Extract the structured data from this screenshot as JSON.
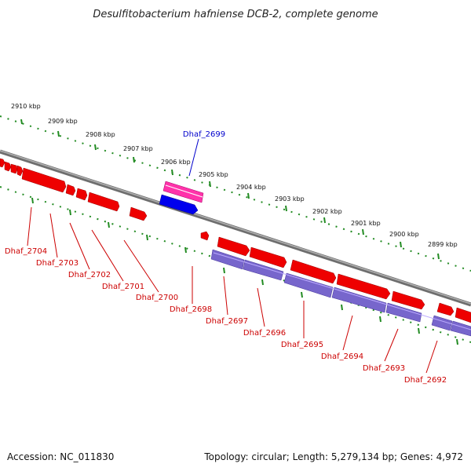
{
  "title": "Desulfitobacterium hafniense DCB-2, complete genome",
  "accession": "Accession: NC_011830",
  "summary": "Topology: circular; Length: 5,279,134 bp; Genes: 4,972",
  "colors": {
    "backbone": "#8a8a8a",
    "gene_forward": "#ee0000",
    "gene_highlight": "#ff33aa",
    "gene_selected": "#0000ee",
    "cds_track": "#7766cc",
    "ticks": "#228b22",
    "label_selected": "#0000cc",
    "label_normal": "#cc0000"
  },
  "kbp_labels": [
    "2910 kbp",
    "2909 kbp",
    "2908 kbp",
    "2907 kbp",
    "2906 kbp",
    "2905 kbp",
    "2904 kbp",
    "2903 kbp",
    "2902 kbp",
    "2901 kbp",
    "2900 kbp",
    "2899 kbp"
  ],
  "selected_gene": "Dhaf_2699",
  "gene_labels": [
    "Dhaf_2704",
    "Dhaf_2703",
    "Dhaf_2702",
    "Dhaf_2701",
    "Dhaf_2700",
    "Dhaf_2698",
    "Dhaf_2697",
    "Dhaf_2696",
    "Dhaf_2695",
    "Dhaf_2694",
    "Dhaf_2693",
    "Dhaf_2692"
  ]
}
